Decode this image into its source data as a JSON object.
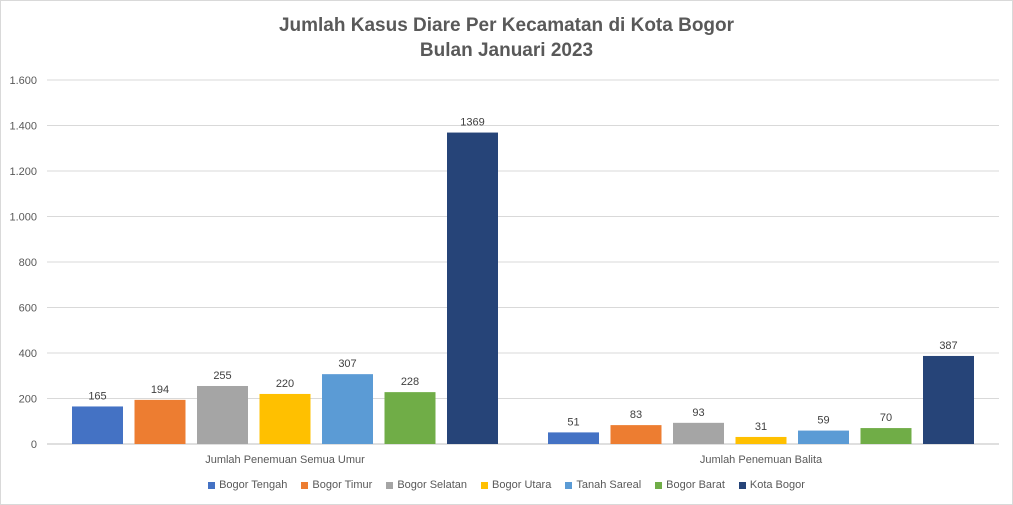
{
  "chart_data": {
    "type": "bar",
    "title_line1": "Jumlah Kasus Diare Per Kecamatan di Kota Bogor",
    "title_line2": "Bulan Januari 2023",
    "categories": [
      "Jumlah Penemuan Semua Umur",
      "Jumlah Penemuan Balita"
    ],
    "ylim": [
      0,
      1600
    ],
    "yticks": [
      0,
      200,
      400,
      600,
      800,
      1000,
      1200,
      1400,
      1600
    ],
    "ytick_labels": [
      "0",
      "200",
      "400",
      "600",
      "800",
      "1.000",
      "1.200",
      "1.400",
      "1.600"
    ],
    "grid": true,
    "legend_position": "bottom",
    "series": [
      {
        "name": "Bogor Tengah",
        "color": "#4472c4",
        "values": [
          165,
          51
        ]
      },
      {
        "name": "Bogor Timur",
        "color": "#ed7d31",
        "values": [
          194,
          83
        ]
      },
      {
        "name": "Bogor Selatan",
        "color": "#a5a5a5",
        "values": [
          255,
          93
        ]
      },
      {
        "name": "Bogor Utara",
        "color": "#ffc000",
        "values": [
          220,
          31
        ]
      },
      {
        "name": "Tanah Sareal",
        "color": "#5b9bd5",
        "values": [
          307,
          59
        ]
      },
      {
        "name": "Bogor Barat",
        "color": "#70ad47",
        "values": [
          228,
          70
        ]
      },
      {
        "name": "Kota Bogor",
        "color": "#264478",
        "values": [
          1369,
          387
        ]
      }
    ]
  }
}
